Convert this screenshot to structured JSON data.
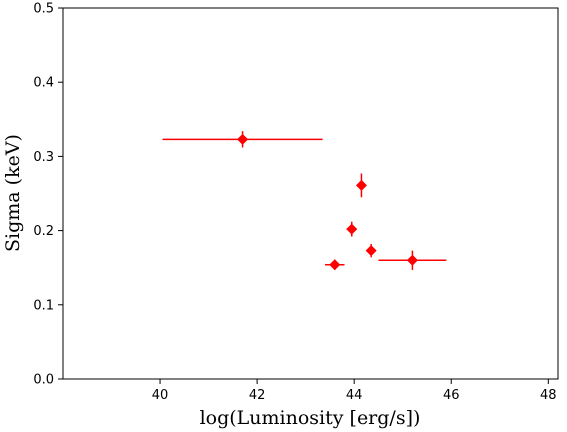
{
  "chart_data": {
    "type": "scatter",
    "title": "",
    "xlabel": "log(Luminosity [erg/s])",
    "ylabel": "Sigma (keV)",
    "xlim": [
      38,
      48.2
    ],
    "ylim": [
      0.0,
      0.5
    ],
    "xticks": [
      40,
      42,
      44,
      46,
      48
    ],
    "yticks": [
      0.0,
      0.1,
      0.2,
      0.3,
      0.4,
      0.5
    ],
    "xtick_labels": [
      "40",
      "42",
      "44",
      "46",
      "48"
    ],
    "ytick_labels": [
      "0.0",
      "0.1",
      "0.2",
      "0.3",
      "0.4",
      "0.5"
    ],
    "grid": false,
    "color": "#ff0000",
    "marker": "diamond",
    "points": [
      {
        "x": 41.7,
        "y": 0.323,
        "xerr_low": 1.65,
        "xerr_high": 1.65,
        "yerr": 0.011
      },
      {
        "x": 43.6,
        "y": 0.154,
        "xerr_low": 0.2,
        "xerr_high": 0.2,
        "yerr": 0.007
      },
      {
        "x": 43.95,
        "y": 0.202,
        "xerr_low": 0.1,
        "xerr_high": 0.1,
        "yerr": 0.01
      },
      {
        "x": 44.15,
        "y": 0.261,
        "xerr_low": 0.05,
        "xerr_high": 0.05,
        "yerr": 0.016
      },
      {
        "x": 44.35,
        "y": 0.173,
        "xerr_low": 0.1,
        "xerr_high": 0.1,
        "yerr": 0.009
      },
      {
        "x": 45.2,
        "y": 0.16,
        "xerr_low": 0.7,
        "xerr_high": 0.7,
        "yerr": 0.013
      }
    ]
  }
}
